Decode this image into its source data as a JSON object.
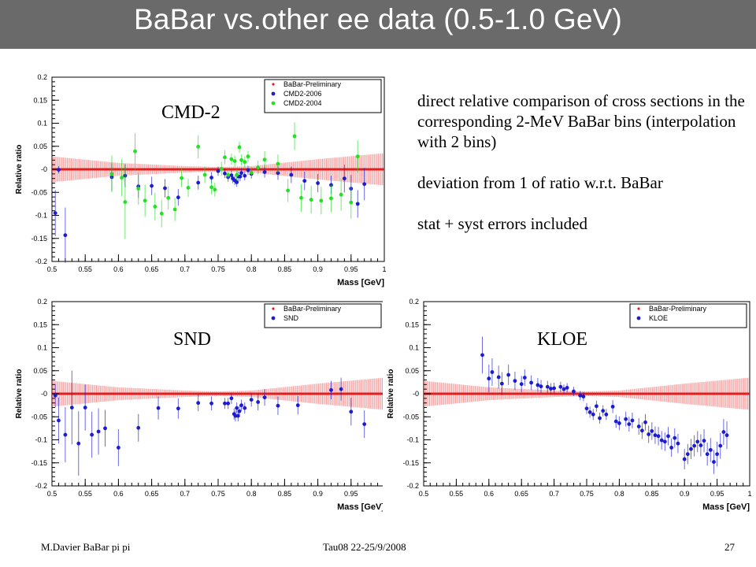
{
  "slide": {
    "title": "BaBar vs.other ee data (0.5-1.0 GeV)",
    "notes": [
      "direct relative comparison of cross sections in the corresponding 2-MeV BaBar bins (interpolation with 2 bins)",
      "deviation from 1 of ratio w.r.t. BaBar",
      "stat + syst errors included"
    ],
    "footer_left": "M.Davier    BaBar pi pi",
    "footer_center": "Tau08  22-25/9/2008",
    "page_number": "27"
  },
  "colors": {
    "babar": "#e02020",
    "babar_band": "#f4a0a0",
    "cmd2_2006": "#1c1cd0",
    "cmd2_2004": "#22e022",
    "snd": "#1c1cd0",
    "kloe": "#1c1cd0",
    "title_bar": "#6a6a6a"
  },
  "chart_data": [
    {
      "type": "scatter",
      "label": "CMD-2",
      "xlabel": "Mass   [GeV]",
      "ylabel": "Relative ratio",
      "xlim": [
        0.5,
        1.0
      ],
      "ylim": [
        -0.2,
        0.2
      ],
      "xticks": [
        "0.5",
        "0.55",
        "0.6",
        "0.65",
        "0.7",
        "0.75",
        "0.8",
        "0.85",
        "0.9",
        "0.95",
        "1"
      ],
      "yticks": [
        "-0.2",
        "-0.15",
        "-0.1",
        "-0.05",
        "-0",
        "0.05",
        "0.1",
        "0.15",
        "0.2"
      ],
      "legend_position": "top-right",
      "legend": [
        "BaBar-Preliminary",
        "CMD2-2006",
        "CMD2-2004"
      ],
      "babar_band": [
        [
          0.5,
          0.028
        ],
        [
          0.6,
          0.014
        ],
        [
          0.7,
          0.007
        ],
        [
          0.75,
          0.005
        ],
        [
          0.8,
          0.007
        ],
        [
          0.9,
          0.022
        ],
        [
          1.0,
          0.035
        ]
      ],
      "series": [
        {
          "name": "CMD2-2006",
          "color_key": "cmd2_2006",
          "points": [
            [
              0.505,
              -0.095,
              0.05
            ],
            [
              0.51,
              -0.001,
              0.008
            ],
            [
              0.52,
              -0.143,
              0.06
            ],
            [
              0.59,
              -0.017,
              0.03
            ],
            [
              0.61,
              -0.014,
              0.025
            ],
            [
              0.63,
              -0.037,
              0.025
            ],
            [
              0.65,
              -0.036,
              0.02
            ],
            [
              0.67,
              -0.041,
              0.02
            ],
            [
              0.69,
              -0.061,
              0.018
            ],
            [
              0.72,
              -0.029,
              0.015
            ],
            [
              0.74,
              -0.018,
              0.012
            ],
            [
              0.75,
              -0.004,
              0.01
            ],
            [
              0.76,
              -0.009,
              0.01
            ],
            [
              0.765,
              -0.017,
              0.01
            ],
            [
              0.77,
              -0.013,
              0.01
            ],
            [
              0.772,
              -0.02,
              0.01
            ],
            [
              0.775,
              -0.024,
              0.01
            ],
            [
              0.778,
              -0.028,
              0.01
            ],
            [
              0.78,
              -0.015,
              0.01
            ],
            [
              0.783,
              -0.016,
              0.01
            ],
            [
              0.785,
              -0.008,
              0.01
            ],
            [
              0.79,
              -0.014,
              0.01
            ],
            [
              0.795,
              -0.002,
              0.01
            ],
            [
              0.8,
              -0.01,
              0.01
            ],
            [
              0.82,
              -0.006,
              0.012
            ],
            [
              0.84,
              -0.008,
              0.015
            ],
            [
              0.86,
              -0.012,
              0.018
            ],
            [
              0.88,
              -0.025,
              0.02
            ],
            [
              0.9,
              -0.03,
              0.02
            ],
            [
              0.92,
              -0.034,
              0.02
            ],
            [
              0.94,
              -0.02,
              0.03
            ],
            [
              0.95,
              -0.042,
              0.03
            ],
            [
              0.96,
              -0.075,
              0.03
            ],
            [
              0.97,
              -0.032,
              0.035
            ]
          ]
        },
        {
          "name": "CMD2-2004",
          "color_key": "cmd2_2004",
          "points": [
            [
              0.59,
              -0.01,
              0.04
            ],
            [
              0.605,
              -0.018,
              0.04
            ],
            [
              0.61,
              -0.071,
              0.08
            ],
            [
              0.625,
              0.039,
              0.04
            ],
            [
              0.63,
              -0.042,
              0.035
            ],
            [
              0.64,
              -0.068,
              0.035
            ],
            [
              0.655,
              -0.081,
              0.03
            ],
            [
              0.665,
              -0.096,
              0.03
            ],
            [
              0.675,
              -0.062,
              0.025
            ],
            [
              0.685,
              -0.087,
              0.025
            ],
            [
              0.695,
              -0.019,
              0.02
            ],
            [
              0.705,
              -0.04,
              0.02
            ],
            [
              0.72,
              0.049,
              0.025
            ],
            [
              0.73,
              -0.012,
              0.018
            ],
            [
              0.74,
              -0.039,
              0.015
            ],
            [
              0.745,
              -0.044,
              0.015
            ],
            [
              0.755,
              0.001,
              0.015
            ],
            [
              0.76,
              0.026,
              0.015
            ],
            [
              0.765,
              -0.012,
              0.012
            ],
            [
              0.77,
              0.022,
              0.012
            ],
            [
              0.775,
              0.018,
              0.012
            ],
            [
              0.778,
              -0.012,
              0.012
            ],
            [
              0.782,
              0.048,
              0.012
            ],
            [
              0.785,
              0.02,
              0.012
            ],
            [
              0.79,
              0.016,
              0.012
            ],
            [
              0.795,
              0.028,
              0.012
            ],
            [
              0.8,
              -0.007,
              0.012
            ],
            [
              0.81,
              0.004,
              0.015
            ],
            [
              0.82,
              0.021,
              0.018
            ],
            [
              0.84,
              0.012,
              0.02
            ],
            [
              0.855,
              -0.046,
              0.025
            ],
            [
              0.865,
              0.072,
              0.03
            ],
            [
              0.875,
              -0.062,
              0.03
            ],
            [
              0.89,
              -0.066,
              0.03
            ],
            [
              0.905,
              -0.068,
              0.03
            ],
            [
              0.92,
              -0.063,
              0.03
            ],
            [
              0.935,
              -0.055,
              0.035
            ],
            [
              0.95,
              -0.072,
              0.035
            ],
            [
              0.96,
              0.028,
              0.035
            ]
          ]
        }
      ]
    },
    {
      "type": "scatter",
      "label": "SND",
      "xlabel": "Mass   [GeV]",
      "ylabel": "Relative ratio",
      "xlim": [
        0.5,
        1.0
      ],
      "ylim": [
        -0.2,
        0.2
      ],
      "xticks": [
        "0.5",
        "0.55",
        "0.6",
        "0.65",
        "0.7",
        "0.75",
        "0.8",
        "0.85",
        "0.9",
        "0.95",
        "1"
      ],
      "yticks": [
        "-0.2",
        "-0.15",
        "-0.1",
        "-0.05",
        "-0",
        "0.05",
        "0.1",
        "0.15",
        "0.2"
      ],
      "legend_position": "top-right",
      "legend": [
        "BaBar-Preliminary",
        "SND"
      ],
      "babar_band": [
        [
          0.5,
          0.028
        ],
        [
          0.6,
          0.014
        ],
        [
          0.7,
          0.007
        ],
        [
          0.75,
          0.005
        ],
        [
          0.8,
          0.007
        ],
        [
          0.9,
          0.022
        ],
        [
          1.0,
          0.035
        ]
      ],
      "series": [
        {
          "name": "SND",
          "color_key": "snd",
          "points": [
            [
              0.505,
              -0.004,
              0.025
            ],
            [
              0.51,
              -0.058,
              0.05
            ],
            [
              0.52,
              -0.089,
              0.06
            ],
            [
              0.53,
              -0.03,
              0.08
            ],
            [
              0.54,
              -0.108,
              0.07
            ],
            [
              0.55,
              -0.03,
              0.05
            ],
            [
              0.56,
              -0.089,
              0.05
            ],
            [
              0.57,
              -0.082,
              0.05
            ],
            [
              0.58,
              -0.075,
              0.04
            ],
            [
              0.6,
              -0.117,
              0.04
            ],
            [
              0.63,
              -0.074,
              0.03
            ],
            [
              0.66,
              -0.031,
              0.025
            ],
            [
              0.69,
              -0.032,
              0.022
            ],
            [
              0.72,
              -0.02,
              0.018
            ],
            [
              0.74,
              -0.021,
              0.015
            ],
            [
              0.76,
              -0.021,
              0.012
            ],
            [
              0.765,
              -0.021,
              0.012
            ],
            [
              0.77,
              -0.01,
              0.012
            ],
            [
              0.774,
              -0.044,
              0.012
            ],
            [
              0.776,
              -0.048,
              0.012
            ],
            [
              0.778,
              -0.031,
              0.012
            ],
            [
              0.78,
              -0.048,
              0.012
            ],
            [
              0.782,
              -0.038,
              0.012
            ],
            [
              0.785,
              -0.025,
              0.012
            ],
            [
              0.79,
              -0.031,
              0.012
            ],
            [
              0.8,
              -0.013,
              0.015
            ],
            [
              0.81,
              -0.018,
              0.018
            ],
            [
              0.82,
              -0.008,
              0.018
            ],
            [
              0.84,
              -0.026,
              0.02
            ],
            [
              0.87,
              -0.025,
              0.02
            ],
            [
              0.92,
              0.008,
              0.02
            ],
            [
              0.935,
              0.01,
              0.025
            ],
            [
              0.95,
              -0.039,
              0.03
            ],
            [
              0.97,
              -0.066,
              0.03
            ]
          ]
        }
      ]
    },
    {
      "type": "scatter",
      "label": "KLOE",
      "xlabel": "Mass   [GeV]",
      "ylabel": "Relative ratio",
      "xlim": [
        0.5,
        1.0
      ],
      "ylim": [
        -0.2,
        0.2
      ],
      "xticks": [
        "0.5",
        "0.55",
        "0.6",
        "0.65",
        "0.7",
        "0.75",
        "0.8",
        "0.85",
        "0.9",
        "0.95",
        "1"
      ],
      "yticks": [
        "-0.2",
        "-0.15",
        "-0.1",
        "-0.05",
        "-0",
        "0.05",
        "0.1",
        "0.15",
        "0.2"
      ],
      "legend_position": "top-right",
      "legend": [
        "BaBar-Preliminary",
        "KLOE"
      ],
      "babar_band": [
        [
          0.5,
          0.028
        ],
        [
          0.6,
          0.014
        ],
        [
          0.7,
          0.007
        ],
        [
          0.75,
          0.005
        ],
        [
          0.8,
          0.007
        ],
        [
          0.9,
          0.022
        ],
        [
          1.0,
          0.035
        ]
      ],
      "series": [
        {
          "name": "KLOE",
          "color_key": "kloe",
          "points": [
            [
              0.59,
              0.084,
              0.04
            ],
            [
              0.6,
              0.033,
              0.03
            ],
            [
              0.605,
              0.047,
              0.03
            ],
            [
              0.615,
              0.036,
              0.025
            ],
            [
              0.62,
              0.022,
              0.025
            ],
            [
              0.63,
              0.041,
              0.022
            ],
            [
              0.64,
              0.028,
              0.02
            ],
            [
              0.65,
              0.021,
              0.018
            ],
            [
              0.655,
              0.035,
              0.018
            ],
            [
              0.665,
              0.024,
              0.016
            ],
            [
              0.675,
              0.019,
              0.015
            ],
            [
              0.68,
              0.016,
              0.014
            ],
            [
              0.69,
              0.015,
              0.013
            ],
            [
              0.695,
              0.011,
              0.012
            ],
            [
              0.7,
              0.012,
              0.012
            ],
            [
              0.71,
              0.015,
              0.011
            ],
            [
              0.715,
              0.01,
              0.01
            ],
            [
              0.72,
              0.013,
              0.01
            ],
            [
              0.73,
              0.005,
              0.01
            ],
            [
              0.74,
              -0.004,
              0.01
            ],
            [
              0.745,
              -0.006,
              0.01
            ],
            [
              0.75,
              -0.032,
              0.012
            ],
            [
              0.755,
              -0.04,
              0.012
            ],
            [
              0.76,
              -0.045,
              0.012
            ],
            [
              0.765,
              -0.027,
              0.012
            ],
            [
              0.77,
              -0.053,
              0.012
            ],
            [
              0.775,
              -0.037,
              0.012
            ],
            [
              0.78,
              -0.045,
              0.012
            ],
            [
              0.79,
              -0.028,
              0.014
            ],
            [
              0.795,
              -0.06,
              0.014
            ],
            [
              0.8,
              -0.064,
              0.015
            ],
            [
              0.81,
              -0.055,
              0.016
            ],
            [
              0.815,
              -0.066,
              0.016
            ],
            [
              0.82,
              -0.058,
              0.017
            ],
            [
              0.83,
              -0.071,
              0.018
            ],
            [
              0.835,
              -0.08,
              0.018
            ],
            [
              0.84,
              -0.062,
              0.018
            ],
            [
              0.845,
              -0.088,
              0.019
            ],
            [
              0.85,
              -0.081,
              0.019
            ],
            [
              0.855,
              -0.09,
              0.019
            ],
            [
              0.86,
              -0.092,
              0.02
            ],
            [
              0.865,
              -0.101,
              0.02
            ],
            [
              0.87,
              -0.104,
              0.02
            ],
            [
              0.875,
              -0.092,
              0.02
            ],
            [
              0.88,
              -0.117,
              0.02
            ],
            [
              0.885,
              -0.096,
              0.021
            ],
            [
              0.89,
              -0.108,
              0.021
            ],
            [
              0.9,
              -0.142,
              0.022
            ],
            [
              0.905,
              -0.131,
              0.022
            ],
            [
              0.91,
              -0.12,
              0.022
            ],
            [
              0.915,
              -0.113,
              0.023
            ],
            [
              0.92,
              -0.104,
              0.023
            ],
            [
              0.925,
              -0.112,
              0.024
            ],
            [
              0.93,
              -0.102,
              0.025
            ],
            [
              0.935,
              -0.131,
              0.025
            ],
            [
              0.94,
              -0.122,
              0.026
            ],
            [
              0.945,
              -0.148,
              0.026
            ],
            [
              0.95,
              -0.131,
              0.027
            ],
            [
              0.955,
              -0.113,
              0.028
            ],
            [
              0.96,
              -0.083,
              0.028
            ],
            [
              0.965,
              -0.09,
              0.03
            ]
          ]
        }
      ]
    }
  ]
}
